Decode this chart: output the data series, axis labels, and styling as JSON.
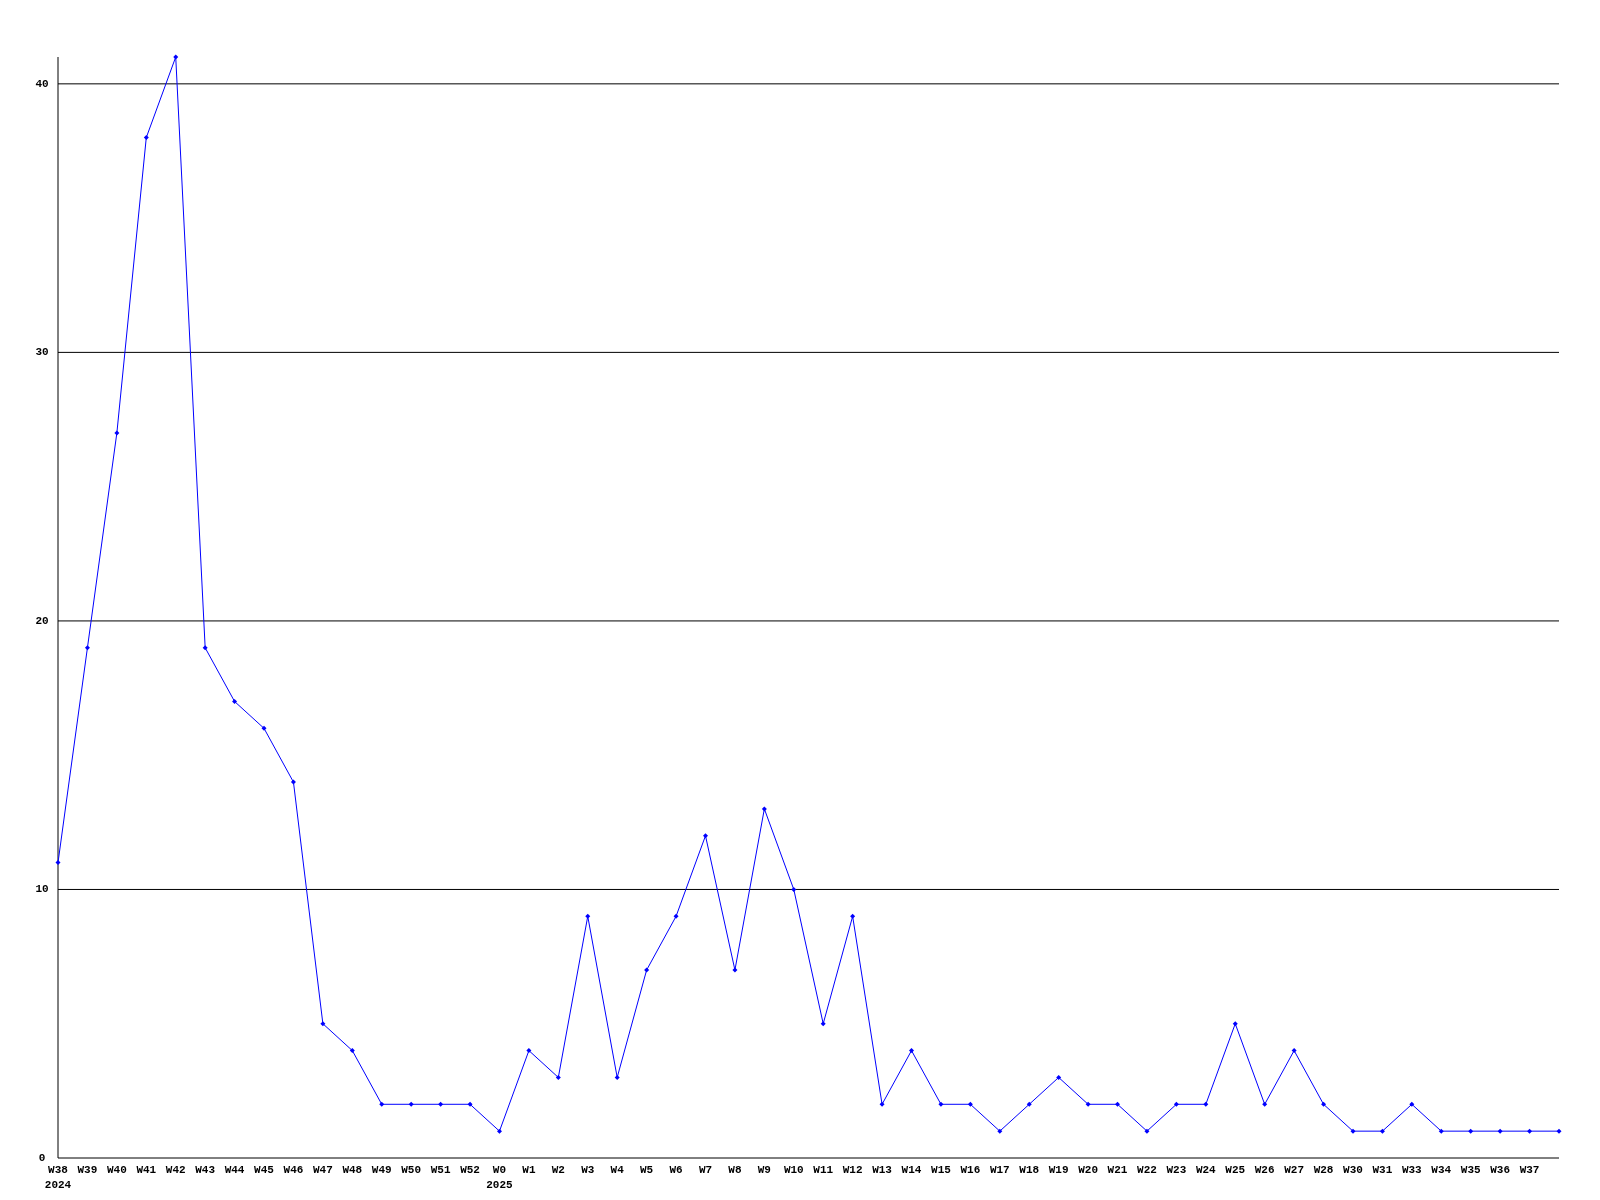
{
  "chart_data": {
    "type": "line",
    "categories": [
      "W38\n2024",
      "W39",
      "W40",
      "W41",
      "W42",
      "W43",
      "W44",
      "W45",
      "W46",
      "W47",
      "W48",
      "W49",
      "W50",
      "W51",
      "W52",
      "W0\n2025",
      "W1",
      "W2",
      "W3",
      "W4",
      "W5",
      "W6",
      "W7",
      "W8",
      "W9",
      "W10",
      "W11",
      "W12",
      "W13",
      "W14",
      "W15",
      "W16",
      "W17",
      "W18",
      "W19",
      "W20",
      "W21",
      "W22",
      "W23",
      "W24",
      "W25",
      "W26",
      "W27",
      "W28",
      "W30",
      "W31",
      "W33",
      "W34",
      "W35",
      "W36",
      "W37",
      null
    ],
    "series": [
      {
        "color": "#0000ff",
        "values": [
          11,
          19,
          27,
          38,
          41,
          19,
          17,
          16,
          14,
          5,
          4,
          2,
          2,
          2,
          2,
          1,
          4,
          3,
          9,
          3,
          7,
          9,
          12,
          7,
          13,
          10,
          5,
          9,
          2,
          4,
          2,
          2,
          1,
          2,
          3,
          2,
          2,
          1,
          2,
          2,
          5,
          2,
          4,
          2,
          1,
          1,
          2,
          1,
          1,
          1,
          1,
          1
        ]
      }
    ],
    "ylim": [
      0,
      41
    ],
    "yticks": [
      0,
      10,
      20,
      30,
      40
    ],
    "grid": "y",
    "marker": "diamond",
    "line_style": "solid"
  }
}
